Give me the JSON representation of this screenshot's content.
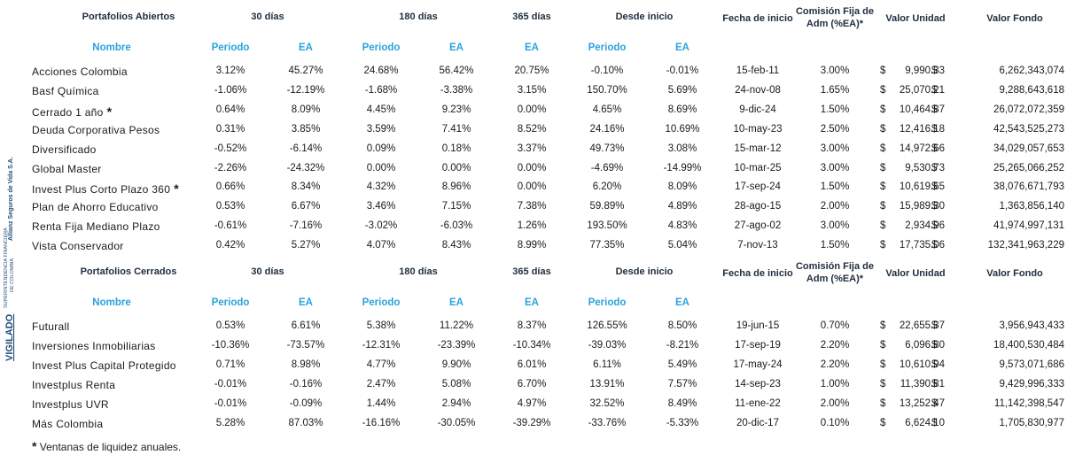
{
  "sidebar": {
    "line1": "Allianz Seguros de Vida S.A.",
    "line2": "SUPERINTENDENCIA FINANCIERA",
    "line3": "DE COLOMBIA",
    "line4": "VIGILADO"
  },
  "headers": {
    "d30": "30 días",
    "d180": "180 días",
    "d365": "365 días",
    "desde": "Desde inicio",
    "fecha": "Fecha de inicio",
    "comision1": "Comisión Fija de",
    "comision2": "Adm (%EA)*",
    "valor_unidad": "Valor Unidad",
    "valor_fondo": "Valor Fondo",
    "nombre": "Nombre",
    "periodo": "Periodo",
    "ea": "EA",
    "currency": "$"
  },
  "sections": [
    {
      "title": "Portafolios Abiertos",
      "rows": [
        {
          "name": "Acciones Colombia",
          "star": "",
          "p30": "3.12%",
          "ea30": "45.27%",
          "p180": "24.68%",
          "ea180": "56.42%",
          "ea365": "20.75%",
          "pdi": "-0.10%",
          "eadi": "-0.01%",
          "fecha": "15-feb-11",
          "com": "3.00%",
          "vu": "9,990.33",
          "vf": "6,262,343,074"
        },
        {
          "name": "Basf Química",
          "star": "",
          "p30": "-1.06%",
          "ea30": "-12.19%",
          "p180": "-1.68%",
          "ea180": "-3.38%",
          "ea365": "3.15%",
          "pdi": "150.70%",
          "eadi": "5.69%",
          "fecha": "24-nov-08",
          "com": "1.65%",
          "vu": "25,070.21",
          "vf": "9,288,643,618"
        },
        {
          "name": "Cerrado 1 año",
          "star": "*",
          "p30": "0.64%",
          "ea30": "8.09%",
          "p180": "4.45%",
          "ea180": "9.23%",
          "ea365": "0.00%",
          "pdi": "4.65%",
          "eadi": "8.69%",
          "fecha": "9-dic-24",
          "com": "1.50%",
          "vu": "10,464.87",
          "vf": "26,072,072,359"
        },
        {
          "name": "Deuda Corporativa Pesos",
          "star": "",
          "p30": "0.31%",
          "ea30": "3.85%",
          "p180": "3.59%",
          "ea180": "7.41%",
          "ea365": "8.52%",
          "pdi": "24.16%",
          "eadi": "10.69%",
          "fecha": "10-may-23",
          "com": "2.50%",
          "vu": "12,416.18",
          "vf": "42,543,525,273"
        },
        {
          "name": "Diversificado",
          "star": "",
          "p30": "-0.52%",
          "ea30": "-6.14%",
          "p180": "0.09%",
          "ea180": "0.18%",
          "ea365": "3.37%",
          "pdi": "49.73%",
          "eadi": "3.08%",
          "fecha": "15-mar-12",
          "com": "3.00%",
          "vu": "14,972.66",
          "vf": "34,029,057,653"
        },
        {
          "name": "Global Master",
          "star": "",
          "p30": "-2.26%",
          "ea30": "-24.32%",
          "p180": "0.00%",
          "ea180": "0.00%",
          "ea365": "0.00%",
          "pdi": "-4.69%",
          "eadi": "-14.99%",
          "fecha": "10-mar-25",
          "com": "3.00%",
          "vu": "9,530.73",
          "vf": "25,265,066,252"
        },
        {
          "name": "Invest Plus Corto Plazo 360",
          "star": "*",
          "p30": "0.66%",
          "ea30": "8.34%",
          "p180": "4.32%",
          "ea180": "8.96%",
          "ea365": "0.00%",
          "pdi": "6.20%",
          "eadi": "8.09%",
          "fecha": "17-sep-24",
          "com": "1.50%",
          "vu": "10,619.65",
          "vf": "38,076,671,793"
        },
        {
          "name": "Plan de Ahorro Educativo",
          "star": "",
          "p30": "0.53%",
          "ea30": "6.67%",
          "p180": "3.46%",
          "ea180": "7.15%",
          "ea365": "7.38%",
          "pdi": "59.89%",
          "eadi": "4.89%",
          "fecha": "28-ago-15",
          "com": "2.00%",
          "vu": "15,989.30",
          "vf": "1,363,856,140"
        },
        {
          "name": "Renta Fija Mediano Plazo",
          "star": "",
          "p30": "-0.61%",
          "ea30": "-7.16%",
          "p180": "-3.02%",
          "ea180": "-6.03%",
          "ea365": "1.26%",
          "pdi": "193.50%",
          "eadi": "4.83%",
          "fecha": "27-ago-02",
          "com": "3.00%",
          "vu": "2,934.96",
          "vf": "41,974,997,131"
        },
        {
          "name": "Vista Conservador",
          "star": "",
          "p30": "0.42%",
          "ea30": "5.27%",
          "p180": "4.07%",
          "ea180": "8.43%",
          "ea365": "8.99%",
          "pdi": "77.35%",
          "eadi": "5.04%",
          "fecha": "7-nov-13",
          "com": "1.50%",
          "vu": "17,735.06",
          "vf": "132,341,963,229"
        }
      ]
    },
    {
      "title": "Portafolios Cerrados",
      "rows": [
        {
          "name": "Futurall",
          "star": "",
          "p30": "0.53%",
          "ea30": "6.61%",
          "p180": "5.38%",
          "ea180": "11.22%",
          "ea365": "8.37%",
          "pdi": "126.55%",
          "eadi": "8.50%",
          "fecha": "19-jun-15",
          "com": "0.70%",
          "vu": "22,655.37",
          "vf": "3,956,943,433"
        },
        {
          "name": "Inversiones Inmobiliarias",
          "star": "",
          "p30": "-10.36%",
          "ea30": "-73.57%",
          "p180": "-12.31%",
          "ea180": "-23.39%",
          "ea365": "-10.34%",
          "pdi": "-39.03%",
          "eadi": "-8.21%",
          "fecha": "17-sep-19",
          "com": "2.20%",
          "vu": "6,096.80",
          "vf": "18,400,530,484"
        },
        {
          "name": "Invest Plus Capital Protegido",
          "star": "",
          "p30": "0.71%",
          "ea30": "8.98%",
          "p180": "4.77%",
          "ea180": "9.90%",
          "ea365": "6.01%",
          "pdi": "6.11%",
          "eadi": "5.49%",
          "fecha": "17-may-24",
          "com": "2.20%",
          "vu": "10,610.94",
          "vf": "9,573,071,686"
        },
        {
          "name": "Investplus Renta",
          "star": "",
          "p30": "-0.01%",
          "ea30": "-0.16%",
          "p180": "2.47%",
          "ea180": "5.08%",
          "ea365": "6.70%",
          "pdi": "13.91%",
          "eadi": "7.57%",
          "fecha": "14-sep-23",
          "com": "1.00%",
          "vu": "11,390.81",
          "vf": "9,429,996,333"
        },
        {
          "name": "Investplus UVR",
          "star": "",
          "p30": "-0.01%",
          "ea30": "-0.09%",
          "p180": "1.44%",
          "ea180": "2.94%",
          "ea365": "4.97%",
          "pdi": "32.52%",
          "eadi": "8.49%",
          "fecha": "11-ene-22",
          "com": "2.00%",
          "vu": "13,252.47",
          "vf": "11,142,398,547"
        },
        {
          "name": "Más Colombia",
          "star": "",
          "p30": "5.28%",
          "ea30": "87.03%",
          "p180": "-16.16%",
          "ea180": "-30.05%",
          "ea365": "-39.29%",
          "pdi": "-33.76%",
          "eadi": "-5.33%",
          "fecha": "20-dic-17",
          "com": "0.10%",
          "vu": "6,624.10",
          "vf": "1,705,830,977"
        }
      ]
    }
  ],
  "footnote": {
    "star": "*",
    "text": " Ventanas de liquidez anuales."
  }
}
